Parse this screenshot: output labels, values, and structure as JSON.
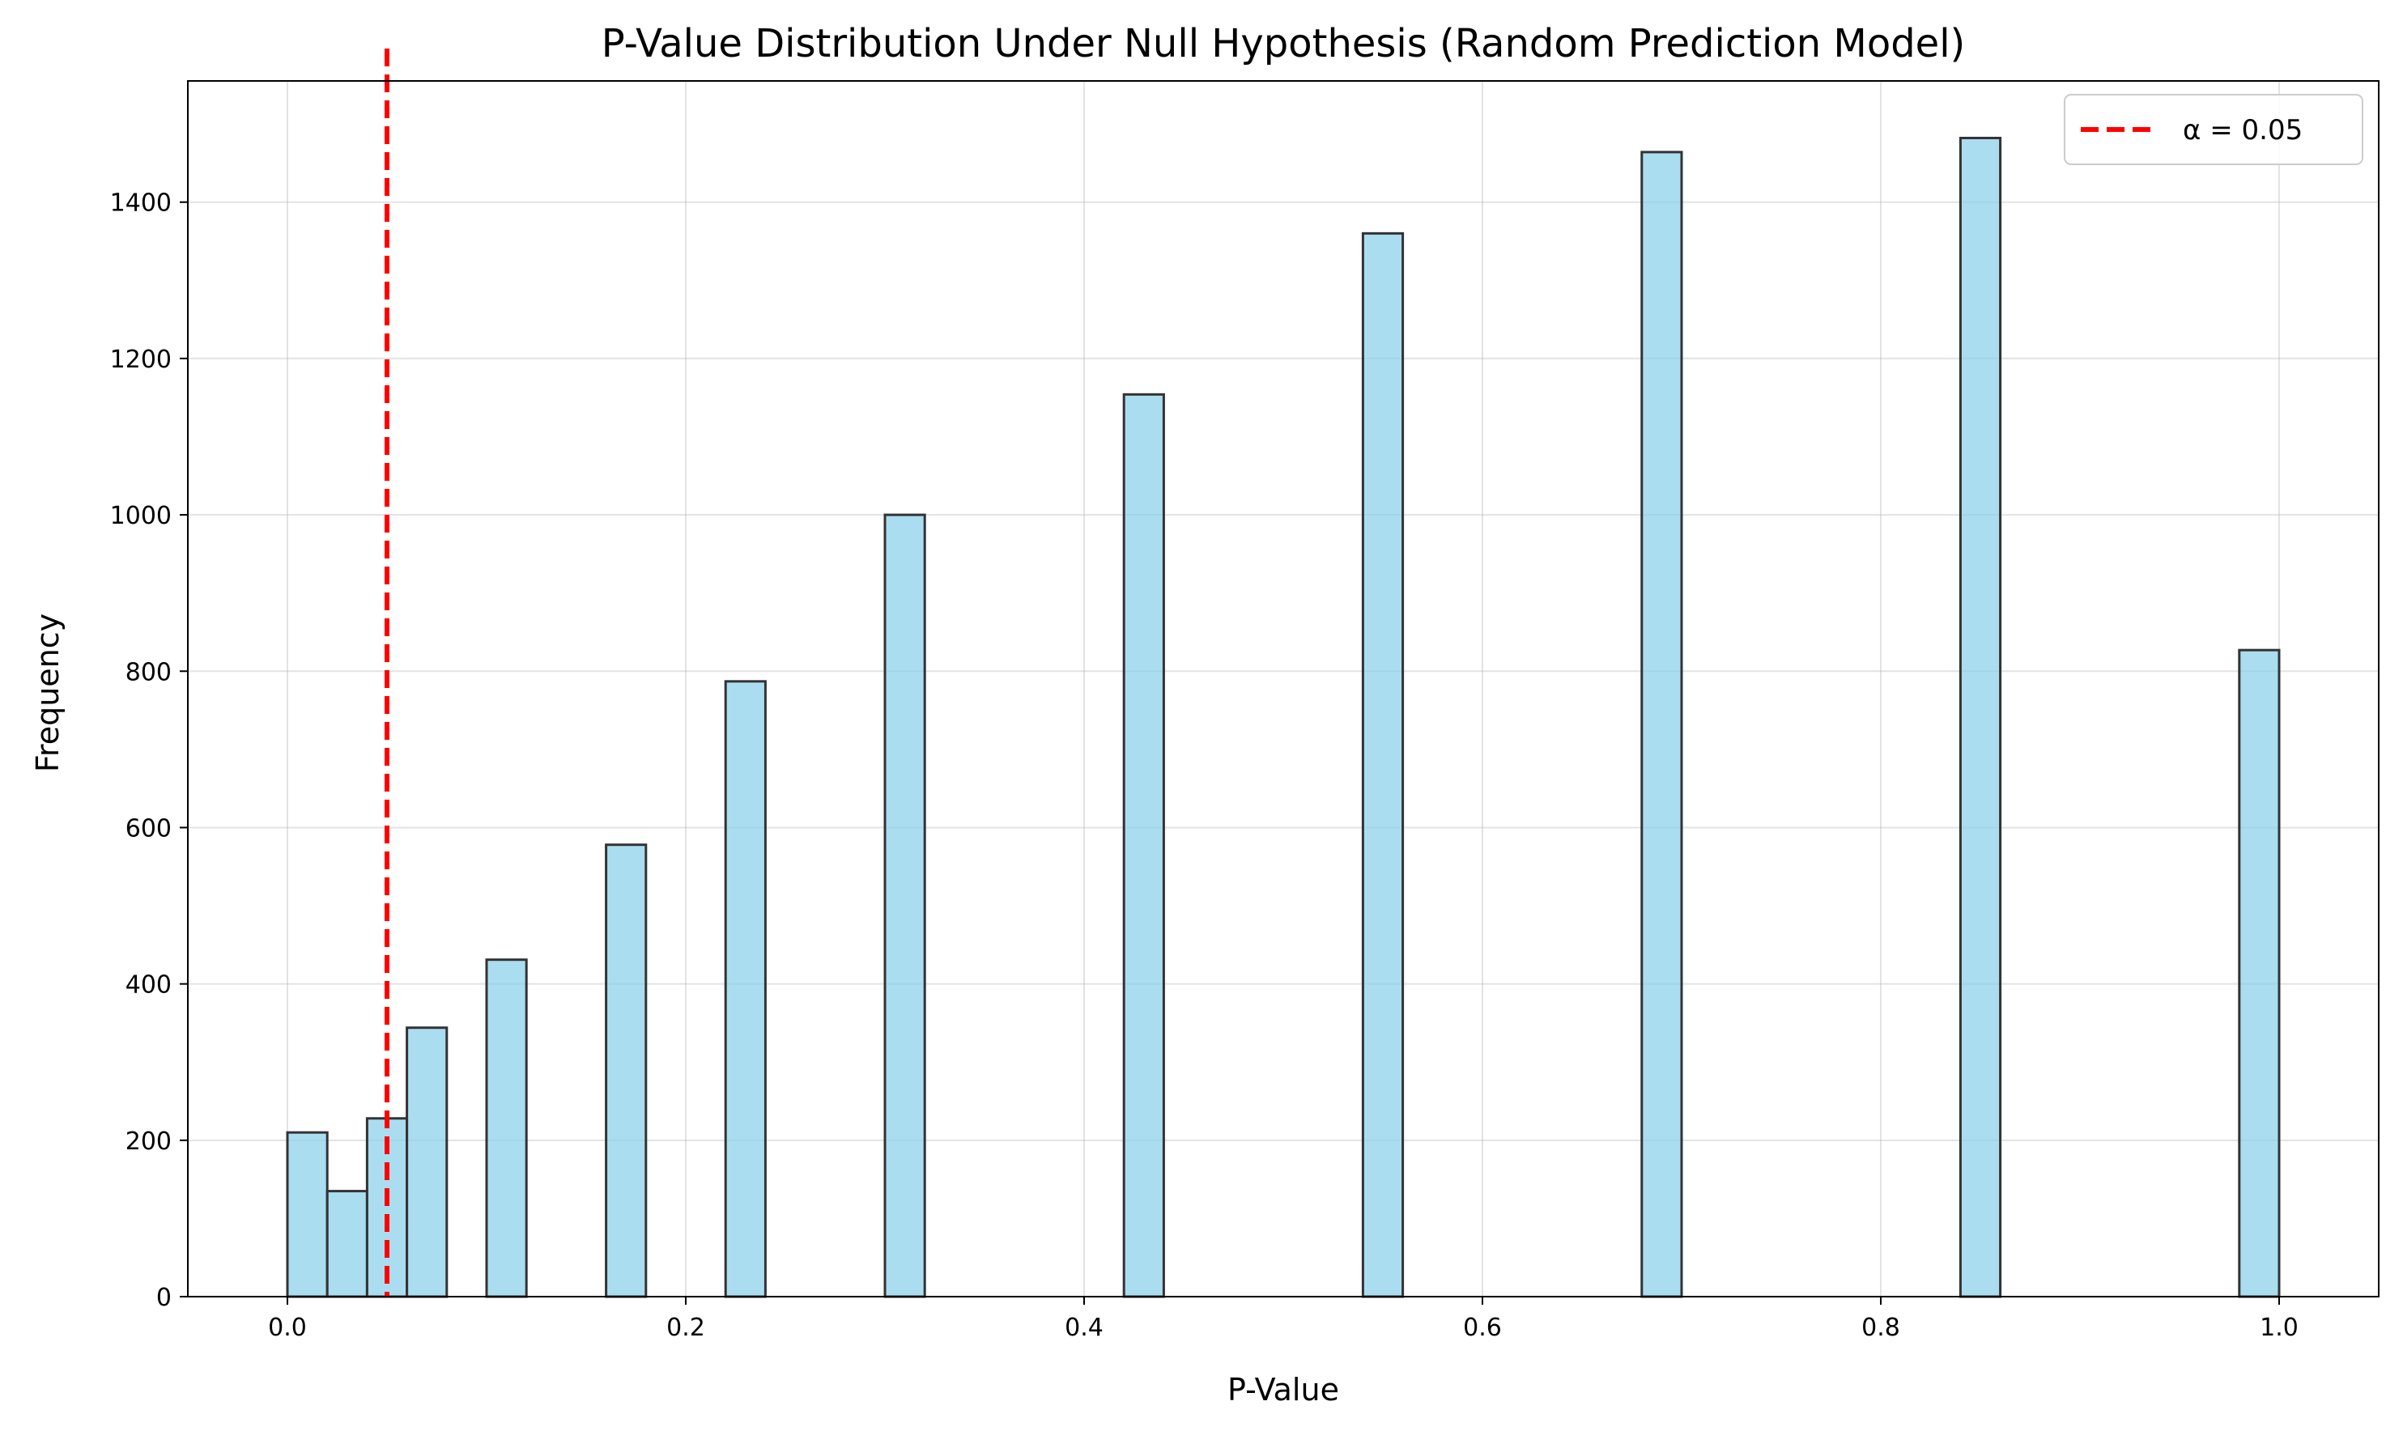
{
  "chart_data": {
    "type": "bar",
    "title": "P-Value Distribution Under Null Hypothesis (Random Prediction Model)",
    "xlabel": "P-Value",
    "ylabel": "Frequency",
    "xlim": [
      -0.05,
      1.05
    ],
    "ylim": [
      0,
      1555
    ],
    "bin_width": 0.02,
    "x_ticks": [
      0.0,
      0.2,
      0.4,
      0.6,
      0.8,
      1.0
    ],
    "x_tick_labels": [
      "0.0",
      "0.2",
      "0.4",
      "0.6",
      "0.8",
      "1.0"
    ],
    "y_ticks": [
      0,
      200,
      400,
      600,
      800,
      1000,
      1200,
      1400
    ],
    "y_tick_labels": [
      "0",
      "200",
      "400",
      "600",
      "800",
      "1000",
      "1200",
      "1400"
    ],
    "bins": [
      {
        "x_start": 0.0,
        "x_end": 0.02,
        "count": 210
      },
      {
        "x_start": 0.02,
        "x_end": 0.04,
        "count": 135
      },
      {
        "x_start": 0.04,
        "x_end": 0.06,
        "count": 228
      },
      {
        "x_start": 0.06,
        "x_end": 0.08,
        "count": 344
      },
      {
        "x_start": 0.1,
        "x_end": 0.12,
        "count": 431
      },
      {
        "x_start": 0.16,
        "x_end": 0.18,
        "count": 578
      },
      {
        "x_start": 0.22,
        "x_end": 0.24,
        "count": 787
      },
      {
        "x_start": 0.3,
        "x_end": 0.32,
        "count": 1000
      },
      {
        "x_start": 0.42,
        "x_end": 0.44,
        "count": 1154
      },
      {
        "x_start": 0.54,
        "x_end": 0.56,
        "count": 1360
      },
      {
        "x_start": 0.68,
        "x_end": 0.7,
        "count": 1464
      },
      {
        "x_start": 0.84,
        "x_end": 0.86,
        "count": 1482
      },
      {
        "x_start": 0.98,
        "x_end": 1.0,
        "count": 827
      }
    ],
    "threshold": {
      "x": 0.05,
      "label": "α = 0.05",
      "color": "#ff0000",
      "style": "dashed"
    },
    "bar_color": "#87CEEB",
    "bar_edge_color": "#333333",
    "grid": true,
    "legend_position": "top-right"
  }
}
